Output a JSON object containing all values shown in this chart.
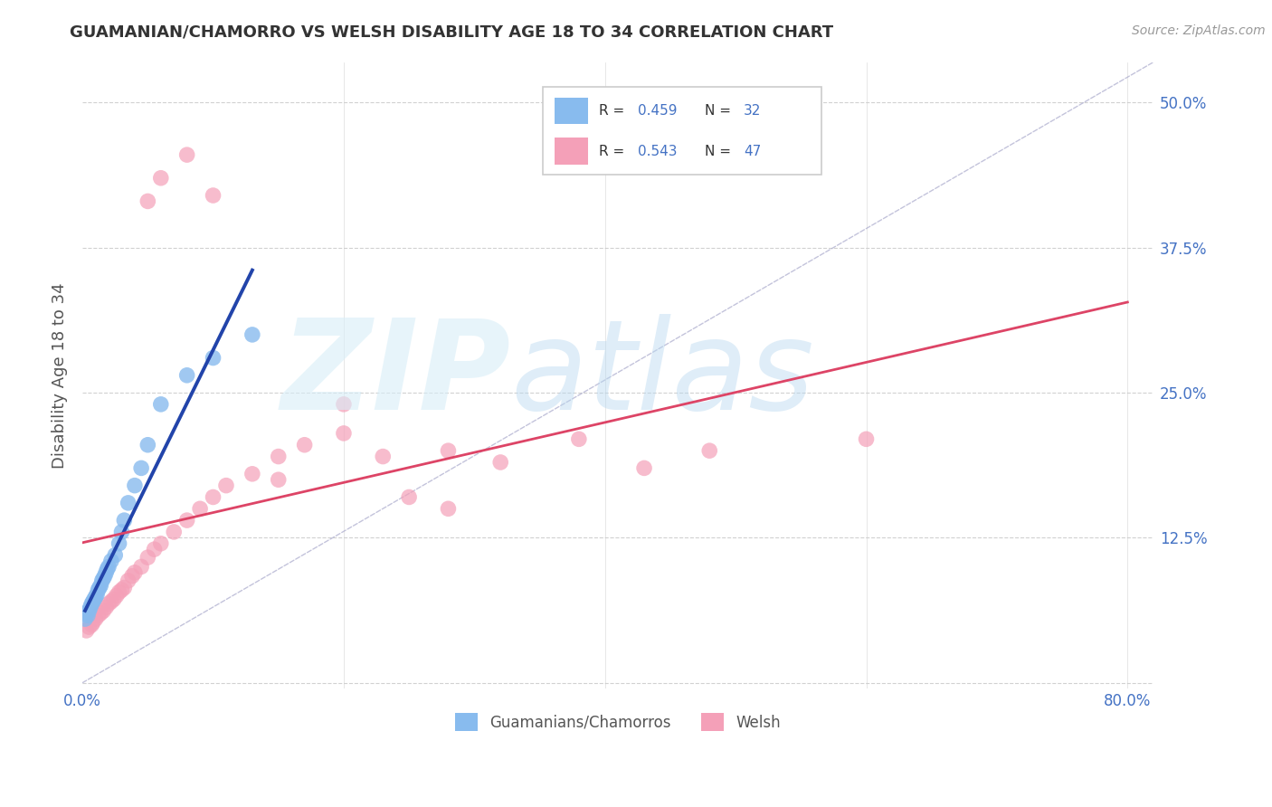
{
  "title": "GUAMANIAN/CHAMORRO VS WELSH DISABILITY AGE 18 TO 34 CORRELATION CHART",
  "source": "Source: ZipAtlas.com",
  "ylabel": "Disability Age 18 to 34",
  "xlim": [
    0.0,
    0.82
  ],
  "ylim": [
    -0.005,
    0.535
  ],
  "xticks": [
    0.0,
    0.2,
    0.4,
    0.6,
    0.8
  ],
  "xtick_labels": [
    "0.0%",
    "",
    "",
    "",
    "80.0%"
  ],
  "yticks": [
    0.0,
    0.125,
    0.25,
    0.375,
    0.5
  ],
  "ytick_labels_right": [
    "",
    "12.5%",
    "25.0%",
    "37.5%",
    "50.0%"
  ],
  "blue_color": "#88BBEE",
  "pink_color": "#F4A0B8",
  "blue_line_color": "#2244AA",
  "pink_line_color": "#DD4466",
  "axis_color": "#4472C4",
  "title_color": "#333333",
  "grid_color": "#CCCCCC",
  "blue_x": [
    0.002,
    0.003,
    0.004,
    0.005,
    0.006,
    0.007,
    0.008,
    0.009,
    0.01,
    0.011,
    0.012,
    0.013,
    0.014,
    0.015,
    0.016,
    0.017,
    0.018,
    0.019,
    0.02,
    0.022,
    0.025,
    0.028,
    0.03,
    0.032,
    0.035,
    0.04,
    0.045,
    0.05,
    0.06,
    0.08,
    0.1,
    0.13
  ],
  "blue_y": [
    0.055,
    0.06,
    0.058,
    0.062,
    0.065,
    0.068,
    0.07,
    0.072,
    0.074,
    0.076,
    0.08,
    0.082,
    0.084,
    0.088,
    0.09,
    0.092,
    0.095,
    0.098,
    0.1,
    0.105,
    0.11,
    0.12,
    0.13,
    0.14,
    0.155,
    0.17,
    0.185,
    0.205,
    0.24,
    0.265,
    0.28,
    0.3
  ],
  "pink_x": [
    0.003,
    0.005,
    0.007,
    0.008,
    0.01,
    0.012,
    0.014,
    0.016,
    0.018,
    0.02,
    0.022,
    0.024,
    0.026,
    0.028,
    0.03,
    0.032,
    0.035,
    0.038,
    0.04,
    0.045,
    0.05,
    0.055,
    0.06,
    0.07,
    0.08,
    0.09,
    0.1,
    0.11,
    0.13,
    0.15,
    0.17,
    0.2,
    0.23,
    0.25,
    0.28,
    0.32,
    0.38,
    0.43,
    0.48,
    0.6,
    0.05,
    0.06,
    0.08,
    0.1,
    0.15,
    0.2,
    0.28
  ],
  "pink_y": [
    0.045,
    0.048,
    0.05,
    0.052,
    0.055,
    0.058,
    0.06,
    0.062,
    0.065,
    0.068,
    0.07,
    0.072,
    0.075,
    0.078,
    0.08,
    0.082,
    0.088,
    0.092,
    0.095,
    0.1,
    0.108,
    0.115,
    0.12,
    0.13,
    0.14,
    0.15,
    0.16,
    0.17,
    0.18,
    0.195,
    0.205,
    0.215,
    0.195,
    0.16,
    0.2,
    0.19,
    0.21,
    0.185,
    0.2,
    0.21,
    0.415,
    0.435,
    0.455,
    0.42,
    0.175,
    0.24,
    0.15
  ]
}
